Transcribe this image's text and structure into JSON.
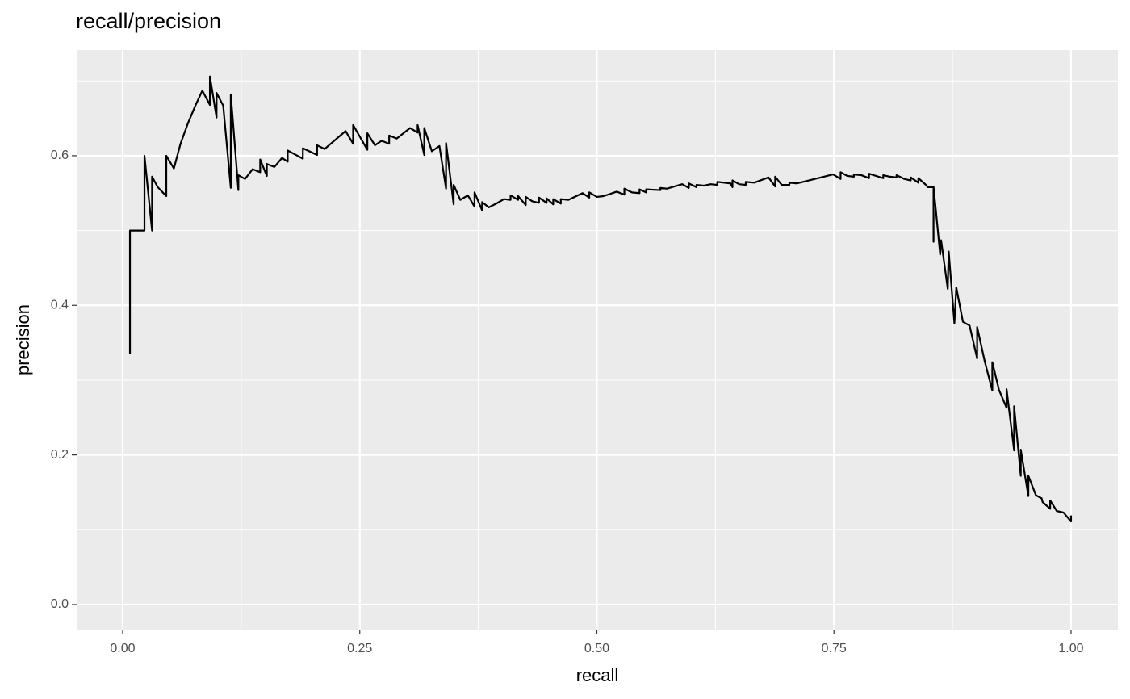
{
  "chart_data": {
    "type": "line",
    "title": "recall/precision",
    "xlabel": "recall",
    "ylabel": "precision",
    "xlim": [
      -0.0485,
      1.0494
    ],
    "ylim": [
      -0.0335,
      0.7413
    ],
    "xticks": [
      {
        "value": 0,
        "label": "0.00"
      },
      0.25,
      {
        "value": 0.5,
        "label": "0.50"
      },
      0.75,
      {
        "value": 1,
        "label": "1.00"
      }
    ],
    "yticks": [
      {
        "value": 0,
        "label": "0.0"
      },
      0.2,
      0.4,
      0.6
    ],
    "xminor": [
      0.125,
      0.375,
      0.625,
      0.875
    ],
    "yminor": [
      0.1,
      0.3,
      0.5,
      0.7
    ],
    "grid": true,
    "panel_color": "#ebebeb",
    "series": [
      {
        "color": "#000000",
        "x": [
          0.0077,
          0.0077,
          0.023,
          0.023,
          0.031,
          0.031,
          0.037,
          0.046,
          0.046,
          0.054,
          0.061,
          0.069,
          0.077,
          0.084,
          0.092,
          0.092,
          0.099,
          0.099,
          0.106,
          0.114,
          0.114,
          0.122,
          0.122,
          0.129,
          0.137,
          0.145,
          0.145,
          0.152,
          0.152,
          0.16,
          0.168,
          0.174,
          0.174,
          0.19,
          0.19,
          0.205,
          0.205,
          0.213,
          0.235,
          0.243,
          0.243,
          0.258,
          0.258,
          0.266,
          0.273,
          0.281,
          0.281,
          0.289,
          0.303,
          0.311,
          0.311,
          0.318,
          0.318,
          0.326,
          0.334,
          0.341,
          0.341,
          0.349,
          0.349,
          0.356,
          0.364,
          0.371,
          0.371,
          0.379,
          0.379,
          0.386,
          0.394,
          0.402,
          0.409,
          0.409,
          0.417,
          0.417,
          0.425,
          0.425,
          0.432,
          0.439,
          0.439,
          0.447,
          0.447,
          0.454,
          0.454,
          0.462,
          0.462,
          0.47,
          0.485,
          0.492,
          0.492,
          0.5,
          0.507,
          0.521,
          0.529,
          0.529,
          0.537,
          0.545,
          0.545,
          0.552,
          0.552,
          0.567,
          0.567,
          0.574,
          0.59,
          0.597,
          0.597,
          0.605,
          0.605,
          0.613,
          0.62,
          0.627,
          0.627,
          0.641,
          0.643,
          0.643,
          0.65,
          0.657,
          0.657,
          0.666,
          0.681,
          0.688,
          0.688,
          0.695,
          0.703,
          0.703,
          0.711,
          0.749,
          0.757,
          0.757,
          0.764,
          0.771,
          0.771,
          0.779,
          0.787,
          0.787,
          0.802,
          0.802,
          0.809,
          0.816,
          0.816,
          0.824,
          0.831,
          0.831,
          0.839,
          0.839,
          0.847,
          0.849,
          0.855,
          0.855,
          0.855,
          0.862,
          0.863,
          0.87,
          0.871,
          0.877,
          0.879,
          0.886,
          0.893,
          0.901,
          0.901,
          0.909,
          0.917,
          0.917,
          0.924,
          0.932,
          0.932,
          0.94,
          0.94,
          0.947,
          0.947,
          0.955,
          0.955,
          0.963,
          0.969,
          0.97,
          0.978,
          0.978,
          0.985,
          0.992,
          1.0,
          1.0
        ],
        "values": [
          0.335,
          0.5,
          0.5,
          0.6,
          0.5,
          0.572,
          0.558,
          0.546,
          0.6,
          0.583,
          0.616,
          0.644,
          0.668,
          0.687,
          0.668,
          0.706,
          0.651,
          0.684,
          0.667,
          0.557,
          0.682,
          0.554,
          0.574,
          0.569,
          0.582,
          0.578,
          0.595,
          0.573,
          0.589,
          0.585,
          0.597,
          0.592,
          0.607,
          0.596,
          0.61,
          0.601,
          0.614,
          0.609,
          0.633,
          0.616,
          0.641,
          0.608,
          0.63,
          0.614,
          0.62,
          0.616,
          0.627,
          0.623,
          0.637,
          0.631,
          0.641,
          0.601,
          0.637,
          0.606,
          0.613,
          0.556,
          0.617,
          0.535,
          0.561,
          0.541,
          0.547,
          0.532,
          0.551,
          0.527,
          0.538,
          0.531,
          0.536,
          0.542,
          0.541,
          0.547,
          0.541,
          0.546,
          0.534,
          0.545,
          0.539,
          0.537,
          0.544,
          0.537,
          0.543,
          0.535,
          0.542,
          0.536,
          0.542,
          0.541,
          0.55,
          0.544,
          0.551,
          0.545,
          0.546,
          0.552,
          0.548,
          0.556,
          0.551,
          0.55,
          0.555,
          0.551,
          0.555,
          0.554,
          0.557,
          0.556,
          0.562,
          0.557,
          0.563,
          0.558,
          0.561,
          0.56,
          0.562,
          0.561,
          0.565,
          0.563,
          0.558,
          0.567,
          0.562,
          0.561,
          0.565,
          0.564,
          0.571,
          0.559,
          0.572,
          0.561,
          0.561,
          0.564,
          0.563,
          0.575,
          0.569,
          0.578,
          0.573,
          0.572,
          0.575,
          0.574,
          0.57,
          0.576,
          0.57,
          0.574,
          0.572,
          0.571,
          0.574,
          0.569,
          0.567,
          0.571,
          0.564,
          0.57,
          0.561,
          0.558,
          0.558,
          0.485,
          0.559,
          0.468,
          0.487,
          0.422,
          0.472,
          0.376,
          0.424,
          0.378,
          0.373,
          0.329,
          0.371,
          0.325,
          0.286,
          0.324,
          0.287,
          0.263,
          0.288,
          0.206,
          0.265,
          0.172,
          0.207,
          0.145,
          0.172,
          0.146,
          0.142,
          0.137,
          0.128,
          0.139,
          0.125,
          0.123,
          0.111,
          0.119
        ]
      }
    ]
  }
}
